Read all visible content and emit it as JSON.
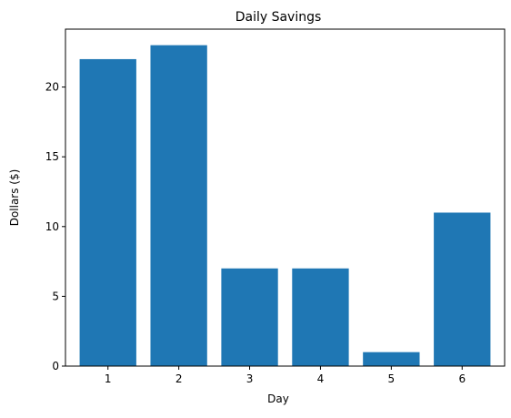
{
  "chart_data": {
    "type": "bar",
    "title": "Daily Savings",
    "xlabel": "Day",
    "ylabel": "Dollars ($)",
    "categories": [
      "1",
      "2",
      "3",
      "4",
      "5",
      "6"
    ],
    "values": [
      22,
      23,
      7,
      7,
      1,
      11
    ],
    "ylim": [
      0,
      24.15
    ],
    "yticks": [
      0,
      5,
      10,
      15,
      20
    ],
    "grid": false,
    "colors": {
      "bar": "#1f77b4"
    }
  }
}
